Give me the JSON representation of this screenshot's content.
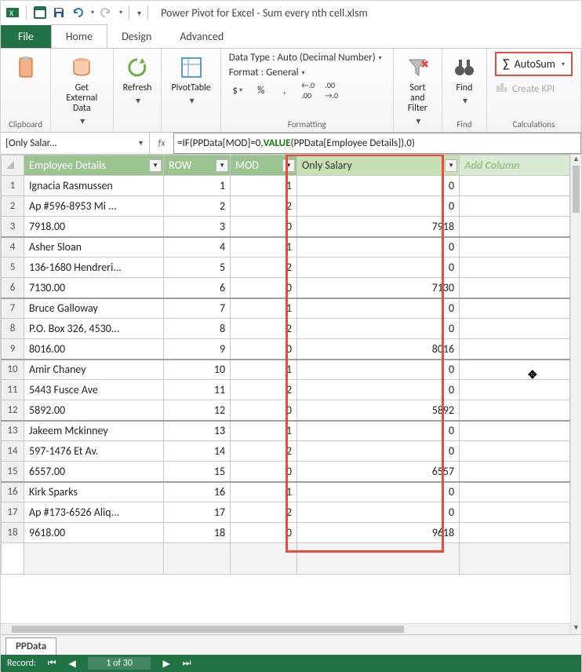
{
  "window": {
    "title": "Power Pivot for Excel - Sum every nth cell.xlsm"
  },
  "tabs": {
    "file": "File",
    "home": "Home",
    "design": "Design",
    "advanced": "Advanced"
  },
  "ribbon": {
    "clipboard": {
      "label": "Clipboard"
    },
    "getdata": {
      "label": "Get External\nData"
    },
    "refresh": {
      "label": "Refresh"
    },
    "pivottable": {
      "label": "PivotTable"
    },
    "formatting": {
      "datatype_label": "Data Type : Auto (Decimal Number)",
      "format_label": "Format : General",
      "group_label": "Formatting",
      "buttons": [
        "$",
        "%",
        ",",
        "+.0",
        ".00"
      ]
    },
    "sortfilter": {
      "label": "Sort and\nFilter"
    },
    "find": {
      "label": "Find",
      "group_label": "Find"
    },
    "calc": {
      "autosum": "AutoSum",
      "createkpi": "Create KPI",
      "group_label": "Calculations"
    }
  },
  "formula_bar": {
    "namebox": "[Only Salar...",
    "fx": "fx",
    "formula_pre": "=IF(PPData[MOD]=0,",
    "formula_value": "VALUE",
    "formula_post": "(PPData[Employee Details]),0)"
  },
  "columns": {
    "emp": "Employee Details",
    "row": "ROW",
    "mod": "MOD",
    "sal": "Only Salary",
    "add": "Add Column"
  },
  "col_widths": {
    "rownum": 28,
    "emp": 172,
    "row": 82,
    "mod": 82,
    "sal": 200,
    "add": 136
  },
  "rows": [
    {
      "n": 1,
      "emp": "Ignacia Rasmussen",
      "row": 1,
      "mod": 1,
      "sal": 0
    },
    {
      "n": 2,
      "emp": "Ap #596-8953 Mi ...",
      "row": 2,
      "mod": 2,
      "sal": 0
    },
    {
      "n": 3,
      "emp": "7918.00",
      "row": 3,
      "mod": 0,
      "sal": 7918
    },
    {
      "n": 4,
      "emp": "Asher Sloan",
      "row": 4,
      "mod": 1,
      "sal": 0
    },
    {
      "n": 5,
      "emp": "136-1680 Hendreri...",
      "row": 5,
      "mod": 2,
      "sal": 0
    },
    {
      "n": 6,
      "emp": "7130.00",
      "row": 6,
      "mod": 0,
      "sal": 7130
    },
    {
      "n": 7,
      "emp": "Bruce Galloway",
      "row": 7,
      "mod": 1,
      "sal": 0
    },
    {
      "n": 8,
      "emp": "P.O. Box 326, 4530...",
      "row": 8,
      "mod": 2,
      "sal": 0
    },
    {
      "n": 9,
      "emp": "8016.00",
      "row": 9,
      "mod": 0,
      "sal": 8016
    },
    {
      "n": 10,
      "emp": "Amir Chaney",
      "row": 10,
      "mod": 1,
      "sal": 0
    },
    {
      "n": 11,
      "emp": "5443 Fusce Ave",
      "row": 11,
      "mod": 2,
      "sal": 0
    },
    {
      "n": 12,
      "emp": "5892.00",
      "row": 12,
      "mod": 0,
      "sal": 5892
    },
    {
      "n": 13,
      "emp": "Jakeem Mckinney",
      "row": 13,
      "mod": 1,
      "sal": 0
    },
    {
      "n": 14,
      "emp": "597-1476 Et Av.",
      "row": 14,
      "mod": 2,
      "sal": 0
    },
    {
      "n": 15,
      "emp": "6557.00",
      "row": 15,
      "mod": 0,
      "sal": 6557
    },
    {
      "n": 16,
      "emp": "Kirk Sparks",
      "row": 16,
      "mod": 1,
      "sal": 0
    },
    {
      "n": 17,
      "emp": "Ap #173-6526 Aliq...",
      "row": 17,
      "mod": 2,
      "sal": 0
    },
    {
      "n": 18,
      "emp": "9618.00",
      "row": 18,
      "mod": 0,
      "sal": 9618
    }
  ],
  "sheet_tab": "PPData",
  "status": {
    "record_label": "Record:",
    "position": "1 of 30"
  },
  "colors": {
    "accent": "#217346",
    "header_bg": "#9ac390",
    "sal_header_bg": "#c6e0b4",
    "addcol_bg": "#d9ead3",
    "highlight_border": "#e74c3c"
  }
}
